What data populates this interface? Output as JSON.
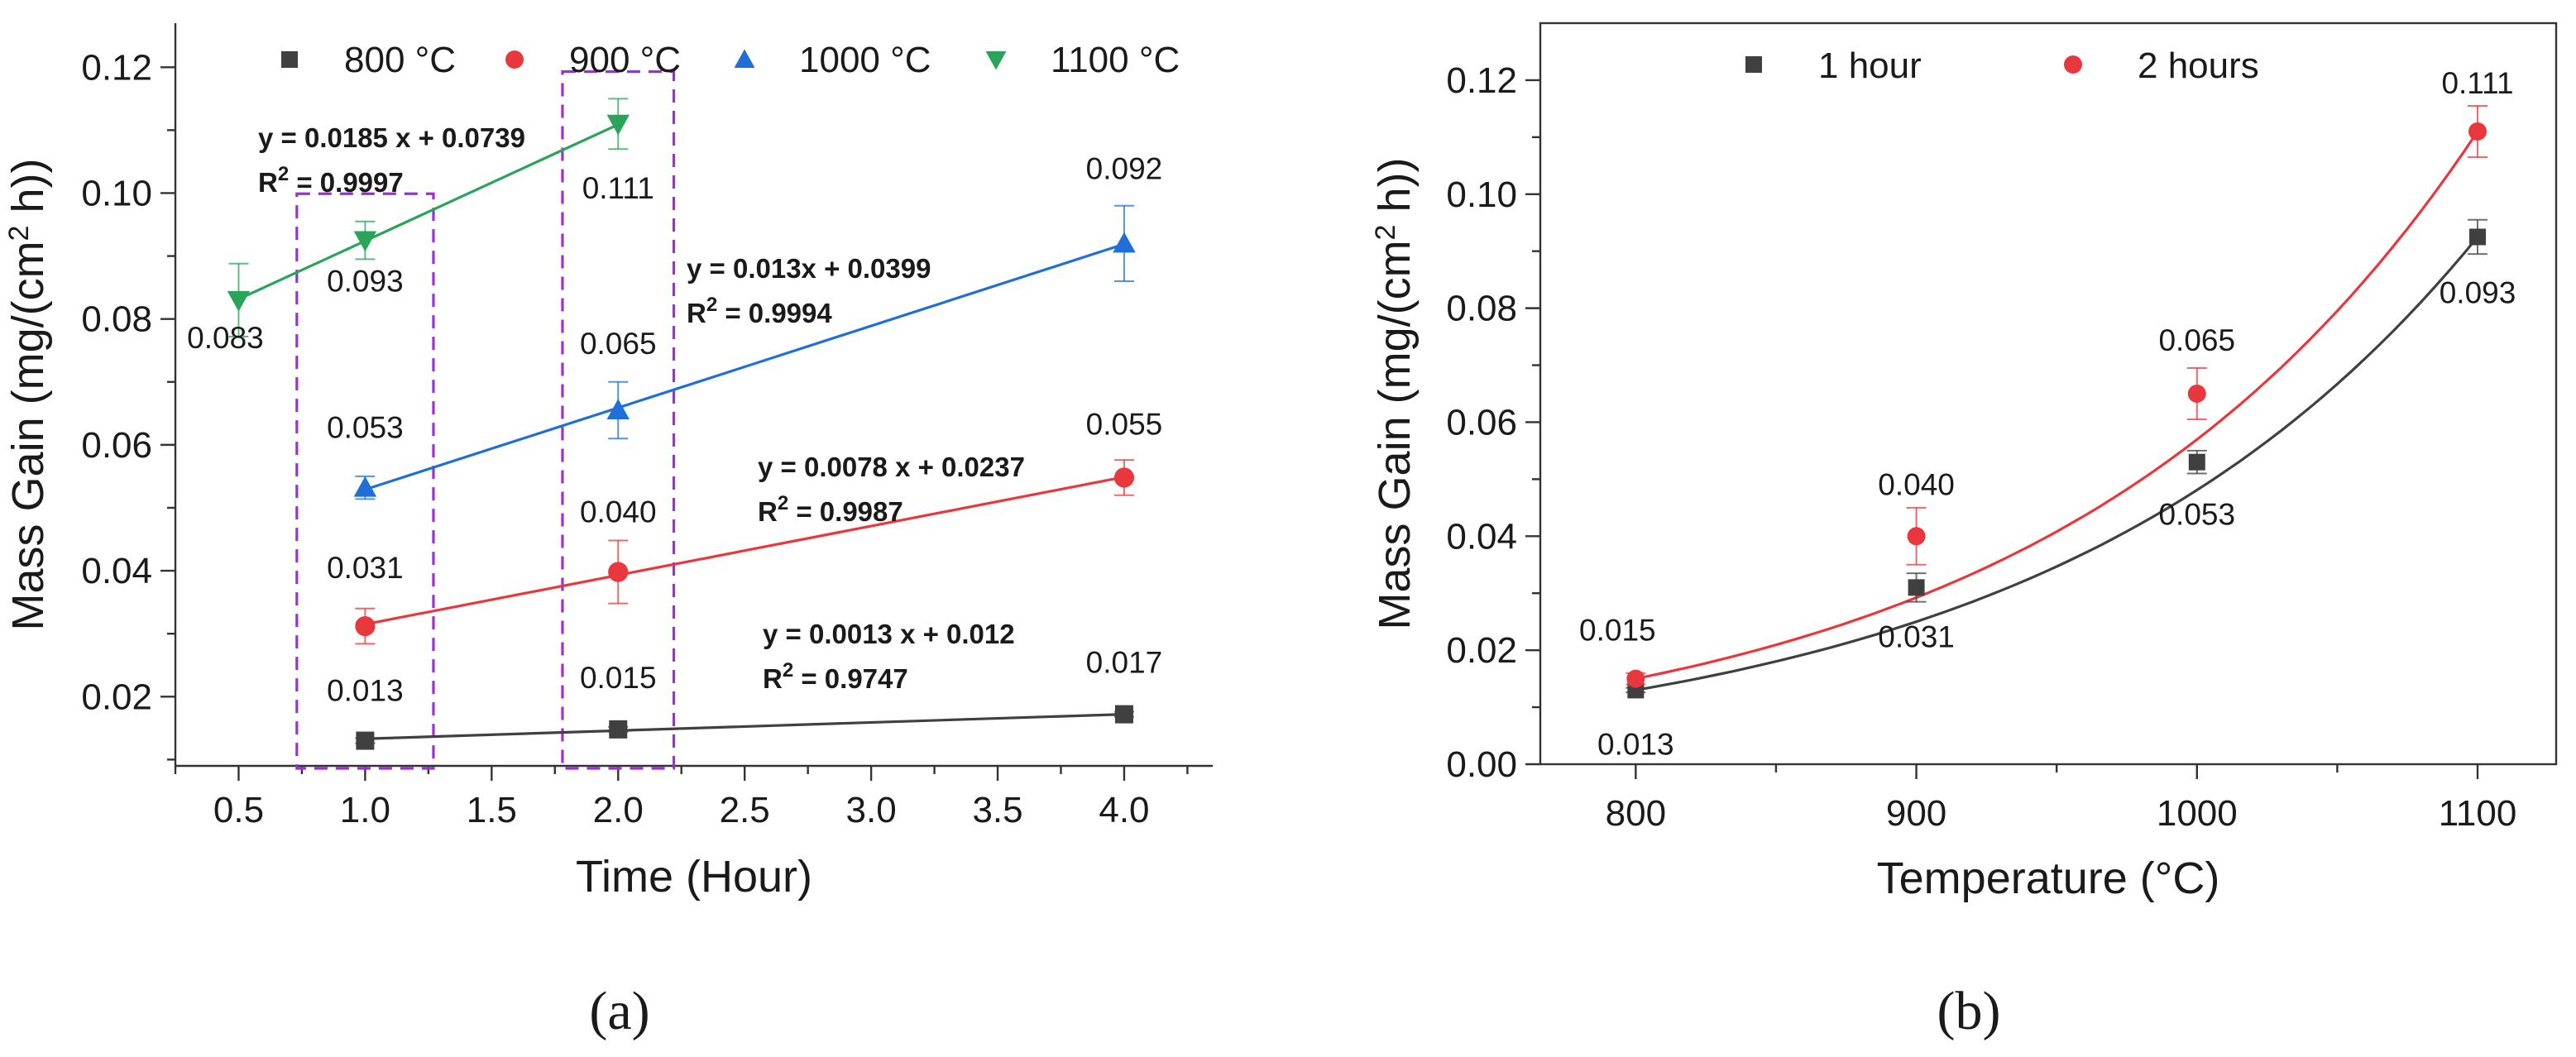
{
  "chart_data": [
    {
      "panel_label": "(a)",
      "type": "scatter",
      "xlabel": "Time (Hour)",
      "ylabel": "Mass Gain (mg/(cm",
      "ylabel_sup": "2",
      "ylabel_tail": " h))",
      "xlim": [
        0.25,
        4.35
      ],
      "ylim": [
        0.009,
        0.127
      ],
      "xticks": [
        "0.5",
        "1.0",
        "1.5",
        "2.0",
        "2.5",
        "3.0",
        "3.5",
        "4.0"
      ],
      "yticks": [
        "0.02",
        "0.04",
        "0.06",
        "0.08",
        "0.10",
        "0.12"
      ],
      "legend": [
        "800 °C",
        "900 °C",
        "1000 °C",
        "1100 °C"
      ],
      "highlighted_times": [
        1.0,
        2.0
      ],
      "series": [
        {
          "name": "800 °C",
          "color": "#404040",
          "marker": "square",
          "x": [
            1.0,
            2.0,
            4.0
          ],
          "y": [
            0.013,
            0.0148,
            0.0172
          ],
          "errors": [
            0.0004,
            0.0004,
            0.0004
          ],
          "labels": [
            "0.013",
            "0.015",
            "0.017"
          ],
          "fit": {
            "slope": 0.0013,
            "intercept": 0.012
          },
          "equation": "y = 0.0013 x + 0.012",
          "r2_label": "R",
          "r2_value": " = 0.9747"
        },
        {
          "name": "900 °C",
          "color": "#e8383d",
          "marker": "circle",
          "x": [
            1.0,
            2.0,
            4.0
          ],
          "y": [
            0.0312,
            0.0398,
            0.0548
          ],
          "errors": [
            0.0028,
            0.005,
            0.0028
          ],
          "labels": [
            "0.031",
            "0.040",
            "0.055"
          ],
          "fit": {
            "slope": 0.0078,
            "intercept": 0.0237
          },
          "equation": "y = 0.0078 x + 0.0237",
          "r2_label": "R",
          "r2_value": " = 0.9987"
        },
        {
          "name": "1000 °C",
          "color": "#1f6fd6",
          "marker": "triangle-up",
          "x": [
            1.0,
            2.0,
            4.0
          ],
          "y": [
            0.0532,
            0.0655,
            0.092
          ],
          "errors": [
            0.0018,
            0.0045,
            0.006
          ],
          "labels": [
            "0.053",
            "0.065",
            "0.092"
          ],
          "fit": {
            "slope": 0.013,
            "intercept": 0.0399
          },
          "equation": "y = 0.013x + 0.0399",
          "r2_label": "R",
          "r2_value": " = 0.9994"
        },
        {
          "name": "1100 °C",
          "color": "#2aa45a",
          "marker": "triangle-down",
          "x": [
            0.5,
            1.0,
            2.0
          ],
          "y": [
            0.083,
            0.0925,
            0.111
          ],
          "errors": [
            0.0058,
            0.003,
            0.004
          ],
          "labels": [
            "0.083",
            "0.093",
            "0.111"
          ],
          "fit": {
            "slope": 0.0185,
            "intercept": 0.0739
          },
          "equation": "y = 0.0185 x + 0.0739",
          "r2_label": "R",
          "r2_value": " = 0.9997"
        }
      ]
    },
    {
      "panel_label": "(b)",
      "type": "scatter",
      "xlabel": "Temperature (°C)",
      "ylabel": "Mass Gain (mg/(cm",
      "ylabel_sup": "2",
      "ylabel_tail": " h))",
      "xlim": [
        766,
        1128
      ],
      "ylim": [
        0.0,
        0.13
      ],
      "xticks": [
        "800",
        "900",
        "1000",
        "1100"
      ],
      "yticks": [
        "0.00",
        "0.02",
        "0.04",
        "0.06",
        "0.08",
        "0.10",
        "0.12"
      ],
      "legend": [
        "1 hour",
        "2 hours"
      ],
      "series": [
        {
          "name": "1 hour",
          "color": "#404040",
          "marker": "square",
          "x": [
            800,
            900,
            1000,
            1100
          ],
          "y": [
            0.013,
            0.031,
            0.053,
            0.0925
          ],
          "errors": [
            0.0004,
            0.0025,
            0.002,
            0.003
          ],
          "labels": [
            "0.013",
            "0.031",
            "0.053",
            "0.093"
          ],
          "curve_fit": "exponential"
        },
        {
          "name": "2 hours",
          "color": "#e8383d",
          "marker": "circle",
          "x": [
            800,
            900,
            1000,
            1100
          ],
          "y": [
            0.015,
            0.04,
            0.065,
            0.111
          ],
          "errors": [
            0.001,
            0.005,
            0.0045,
            0.0045
          ],
          "labels": [
            "0.015",
            "0.040",
            "0.065",
            "0.111"
          ],
          "curve_fit": "exponential"
        }
      ]
    }
  ]
}
